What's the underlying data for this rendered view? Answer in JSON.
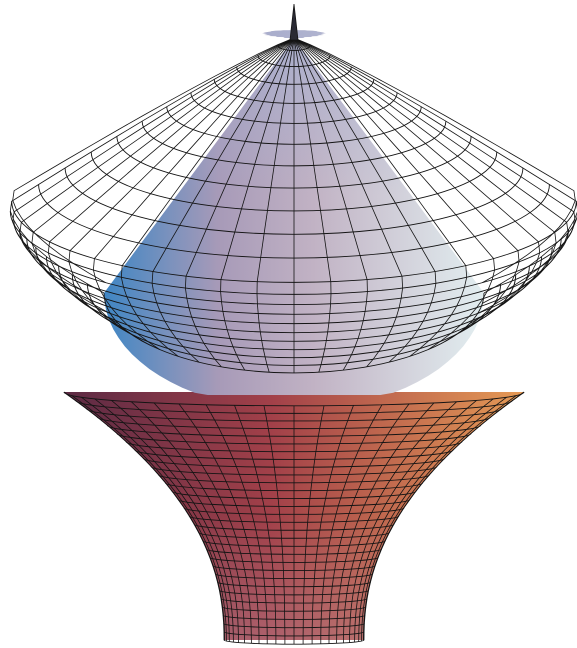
{
  "figure": {
    "kind": "3d-surface-of-revolution",
    "background": "#ffffff",
    "edge_color": "#141414",
    "lighting": {
      "cap_left": "#3f86c4",
      "cap_mid": "#a79ab8",
      "cap_center": "#c1b2c4",
      "cap_right": "#e2eef0",
      "cap_tip": "#9fb3d8",
      "stem_left": "#5c2a44",
      "stem_center": "#a24049",
      "stem_right": "#e59a55",
      "stem_bottom": "#b77b88"
    }
  }
}
